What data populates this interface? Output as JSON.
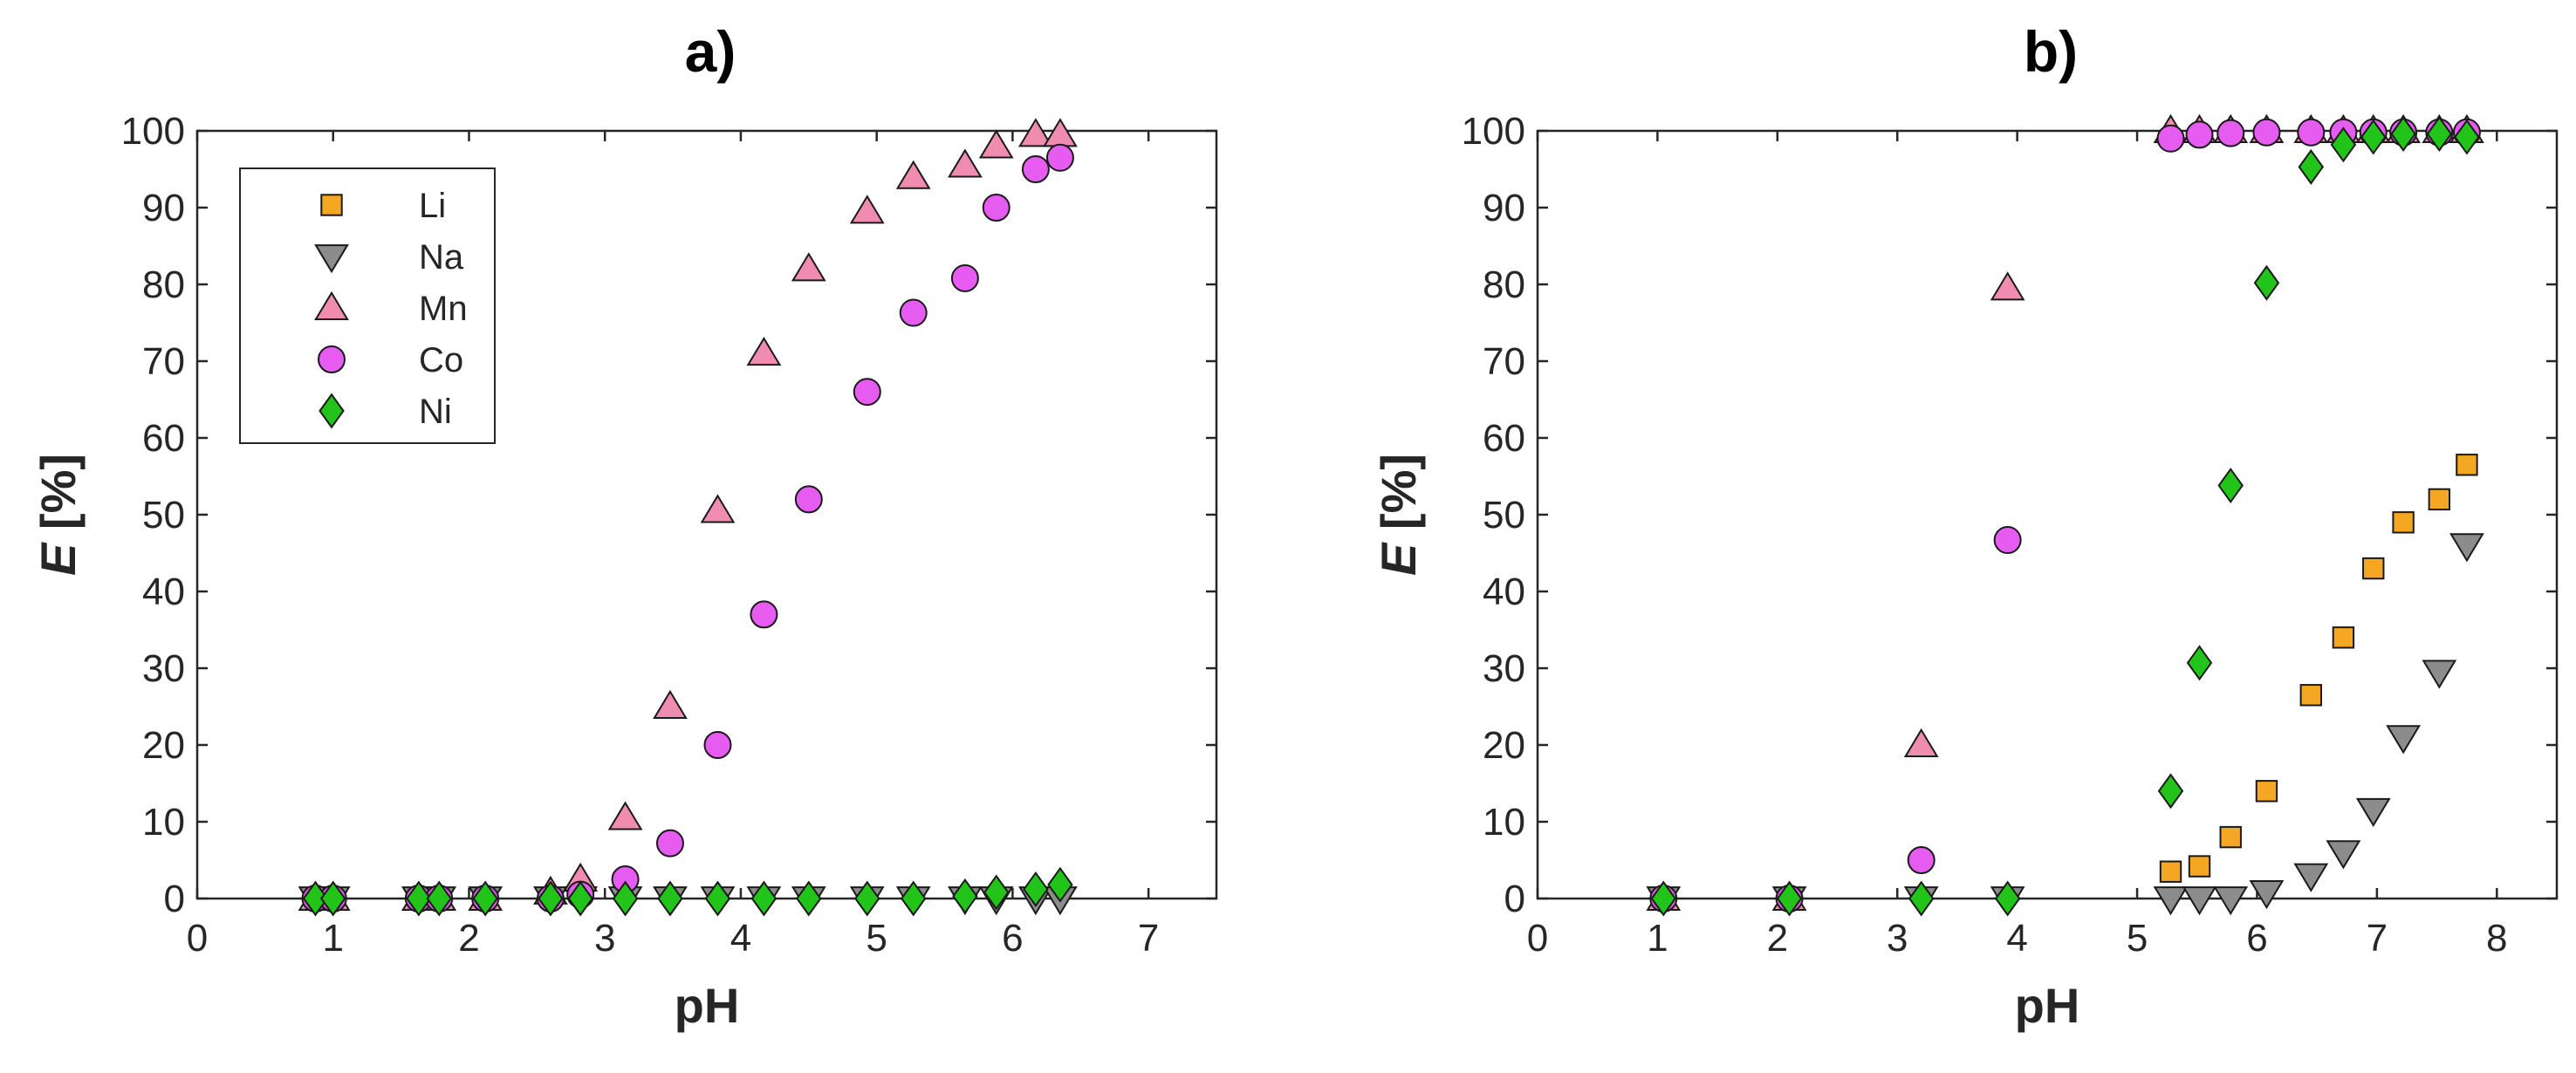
{
  "chart_data": [
    {
      "type": "scatter",
      "panel_label": "a)",
      "title": "",
      "xlabel": "pH",
      "ylabel_italic": "E",
      "ylabel_rest": " [%]",
      "xlim": [
        0,
        7.5
      ],
      "ylim": [
        0,
        100
      ],
      "xticks": [
        0,
        1,
        2,
        3,
        4,
        5,
        6,
        7
      ],
      "yticks": [
        0,
        10,
        20,
        30,
        40,
        50,
        60,
        70,
        80,
        90,
        100
      ],
      "grid": false,
      "legend": {
        "placement": "top-left",
        "entries": [
          "Li",
          "Na",
          "Mn",
          "Co",
          "Ni"
        ]
      },
      "series": [
        {
          "name": "Li",
          "marker": "square",
          "color": "#f5a623",
          "points": []
        },
        {
          "name": "Na",
          "marker": "triangle-down",
          "color": "#8c8c8c",
          "points": [
            [
              0.87,
              0
            ],
            [
              1.0,
              0
            ],
            [
              1.63,
              0
            ],
            [
              1.78,
              0
            ],
            [
              2.12,
              0
            ],
            [
              2.6,
              0
            ],
            [
              2.82,
              0
            ],
            [
              3.15,
              0
            ],
            [
              3.48,
              0
            ],
            [
              3.83,
              0
            ],
            [
              4.17,
              0
            ],
            [
              4.5,
              0
            ],
            [
              4.93,
              0
            ],
            [
              5.27,
              0
            ],
            [
              5.65,
              0
            ],
            [
              5.88,
              0
            ],
            [
              6.17,
              0
            ],
            [
              6.35,
              0
            ]
          ]
        },
        {
          "name": "Mn",
          "marker": "triangle-up",
          "color": "#f08cb0",
          "points": [
            [
              0.87,
              0
            ],
            [
              1.0,
              0
            ],
            [
              1.63,
              0
            ],
            [
              1.78,
              0
            ],
            [
              2.12,
              0
            ],
            [
              2.6,
              0.8
            ],
            [
              2.82,
              2.5
            ],
            [
              3.15,
              10.5
            ],
            [
              3.48,
              25
            ],
            [
              3.83,
              50.5
            ],
            [
              4.17,
              71
            ],
            [
              4.5,
              82
            ],
            [
              4.93,
              89.5
            ],
            [
              5.27,
              94
            ],
            [
              5.65,
              95.5
            ],
            [
              5.88,
              98
            ],
            [
              6.17,
              99.5
            ],
            [
              6.35,
              99.5
            ]
          ]
        },
        {
          "name": "Co",
          "marker": "circle",
          "color": "#e65cf0",
          "points": [
            [
              0.87,
              0
            ],
            [
              1.0,
              0
            ],
            [
              1.63,
              0
            ],
            [
              1.78,
              0
            ],
            [
              2.12,
              0
            ],
            [
              2.6,
              0
            ],
            [
              2.82,
              0.5
            ],
            [
              3.15,
              2.5
            ],
            [
              3.48,
              7.2
            ],
            [
              3.83,
              20
            ],
            [
              4.17,
              37
            ],
            [
              4.5,
              52
            ],
            [
              4.93,
              66
            ],
            [
              5.27,
              76.3
            ],
            [
              5.65,
              80.8
            ],
            [
              5.88,
              90
            ],
            [
              6.17,
              95
            ],
            [
              6.35,
              96.5
            ]
          ]
        },
        {
          "name": "Ni",
          "marker": "diamond",
          "color": "#22c41a",
          "points": [
            [
              0.87,
              0
            ],
            [
              1.0,
              0
            ],
            [
              1.63,
              0
            ],
            [
              1.78,
              0
            ],
            [
              2.12,
              0
            ],
            [
              2.6,
              0
            ],
            [
              2.82,
              0
            ],
            [
              3.15,
              0
            ],
            [
              3.48,
              0
            ],
            [
              3.83,
              0
            ],
            [
              4.17,
              0
            ],
            [
              4.5,
              0
            ],
            [
              4.93,
              0
            ],
            [
              5.27,
              0
            ],
            [
              5.65,
              0.3
            ],
            [
              5.88,
              0.8
            ],
            [
              6.17,
              1.2
            ],
            [
              6.35,
              1.8
            ]
          ]
        }
      ]
    },
    {
      "type": "scatter",
      "panel_label": "b)",
      "title": "",
      "xlabel": "pH",
      "ylabel_italic": "E",
      "ylabel_rest": " [%]",
      "xlim": [
        0,
        8.5
      ],
      "ylim": [
        0,
        100
      ],
      "xticks": [
        0,
        1,
        2,
        3,
        4,
        5,
        6,
        7,
        8
      ],
      "yticks": [
        0,
        10,
        20,
        30,
        40,
        50,
        60,
        70,
        80,
        90,
        100
      ],
      "grid": false,
      "series": [
        {
          "name": "Li",
          "marker": "square",
          "color": "#f5a623",
          "points": [
            [
              5.28,
              3.5
            ],
            [
              5.52,
              4.2
            ],
            [
              5.78,
              8
            ],
            [
              6.08,
              14
            ],
            [
              6.45,
              26.5
            ],
            [
              6.72,
              34
            ],
            [
              6.97,
              43
            ],
            [
              7.22,
              49
            ],
            [
              7.52,
              52
            ],
            [
              7.75,
              56.5
            ]
          ]
        },
        {
          "name": "Na",
          "marker": "triangle-down",
          "color": "#8c8c8c",
          "points": [
            [
              1.05,
              0
            ],
            [
              2.1,
              0
            ],
            [
              3.2,
              0
            ],
            [
              3.92,
              0
            ],
            [
              5.28,
              0
            ],
            [
              5.52,
              0
            ],
            [
              5.78,
              0
            ],
            [
              6.08,
              0.8
            ],
            [
              6.45,
              3
            ],
            [
              6.72,
              6
            ],
            [
              6.97,
              11.5
            ],
            [
              7.22,
              21
            ],
            [
              7.52,
              29.5
            ],
            [
              7.75,
              46
            ]
          ]
        },
        {
          "name": "Mn",
          "marker": "triangle-up",
          "color": "#f08cb0",
          "points": [
            [
              1.05,
              0
            ],
            [
              2.1,
              0
            ],
            [
              3.2,
              20
            ],
            [
              3.92,
              79.5
            ],
            [
              5.28,
              100
            ],
            [
              5.52,
              100
            ],
            [
              5.78,
              100
            ],
            [
              6.08,
              100
            ],
            [
              6.45,
              100
            ],
            [
              6.72,
              100
            ],
            [
              6.97,
              100
            ],
            [
              7.22,
              100
            ],
            [
              7.52,
              100
            ],
            [
              7.75,
              100
            ]
          ]
        },
        {
          "name": "Co",
          "marker": "circle",
          "color": "#e65cf0",
          "points": [
            [
              1.05,
              0
            ],
            [
              2.1,
              0
            ],
            [
              3.2,
              5
            ],
            [
              3.92,
              46.7
            ],
            [
              5.28,
              99
            ],
            [
              5.52,
              99.5
            ],
            [
              5.78,
              99.7
            ],
            [
              6.08,
              99.8
            ],
            [
              6.45,
              99.8
            ],
            [
              6.72,
              99.8
            ],
            [
              6.97,
              99.8
            ],
            [
              7.22,
              99.8
            ],
            [
              7.52,
              99.8
            ],
            [
              7.75,
              99.8
            ]
          ]
        },
        {
          "name": "Ni",
          "marker": "diamond",
          "color": "#22c41a",
          "points": [
            [
              1.05,
              0
            ],
            [
              2.1,
              0
            ],
            [
              3.2,
              0
            ],
            [
              3.92,
              0
            ],
            [
              5.28,
              14
            ],
            [
              5.52,
              30.7
            ],
            [
              5.78,
              53.8
            ],
            [
              6.08,
              80.2
            ],
            [
              6.45,
              95.3
            ],
            [
              6.72,
              98.2
            ],
            [
              6.97,
              99.2
            ],
            [
              7.22,
              99.6
            ],
            [
              7.52,
              99.6
            ],
            [
              7.75,
              99.2
            ]
          ]
        }
      ]
    }
  ]
}
